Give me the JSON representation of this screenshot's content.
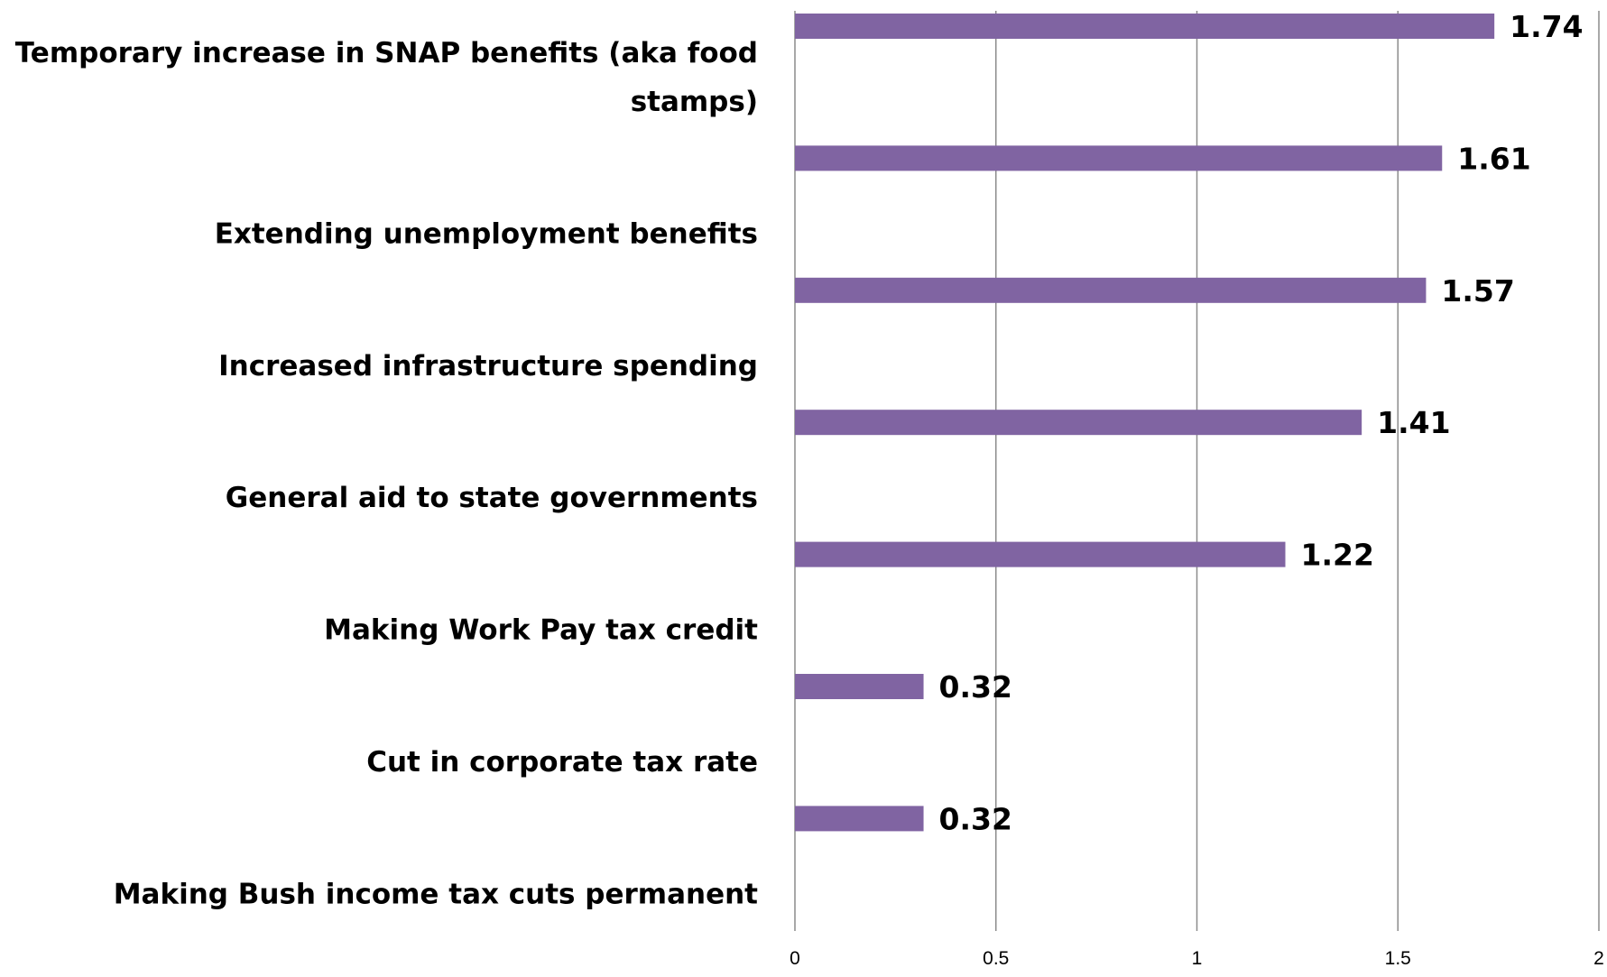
{
  "chart_data": {
    "type": "bar",
    "orientation": "horizontal",
    "categories": [
      "Temporary increase in SNAP benefits (aka food stamps)",
      "Extending unemployment benefits",
      "Increased infrastructure spending",
      "General aid to state governments",
      "Making Work Pay tax credit",
      "Cut in corporate tax rate",
      "Making Bush income tax cuts permanent"
    ],
    "values": [
      1.74,
      1.61,
      1.57,
      1.41,
      1.22,
      0.32,
      0.32
    ],
    "value_labels": [
      "1.74",
      "1.61",
      "1.57",
      "1.41",
      "1.22",
      "0.32",
      "0.32"
    ],
    "xlim": [
      0,
      2
    ],
    "x_ticks": [
      0,
      0.5,
      1,
      1.5,
      2
    ],
    "x_tick_labels": [
      "0",
      "0.5",
      "1",
      "1.5",
      "2"
    ],
    "title": "",
    "xlabel": "",
    "ylabel": "",
    "grid": "vertical",
    "legend": "none",
    "bar_color": "#8064A2"
  }
}
